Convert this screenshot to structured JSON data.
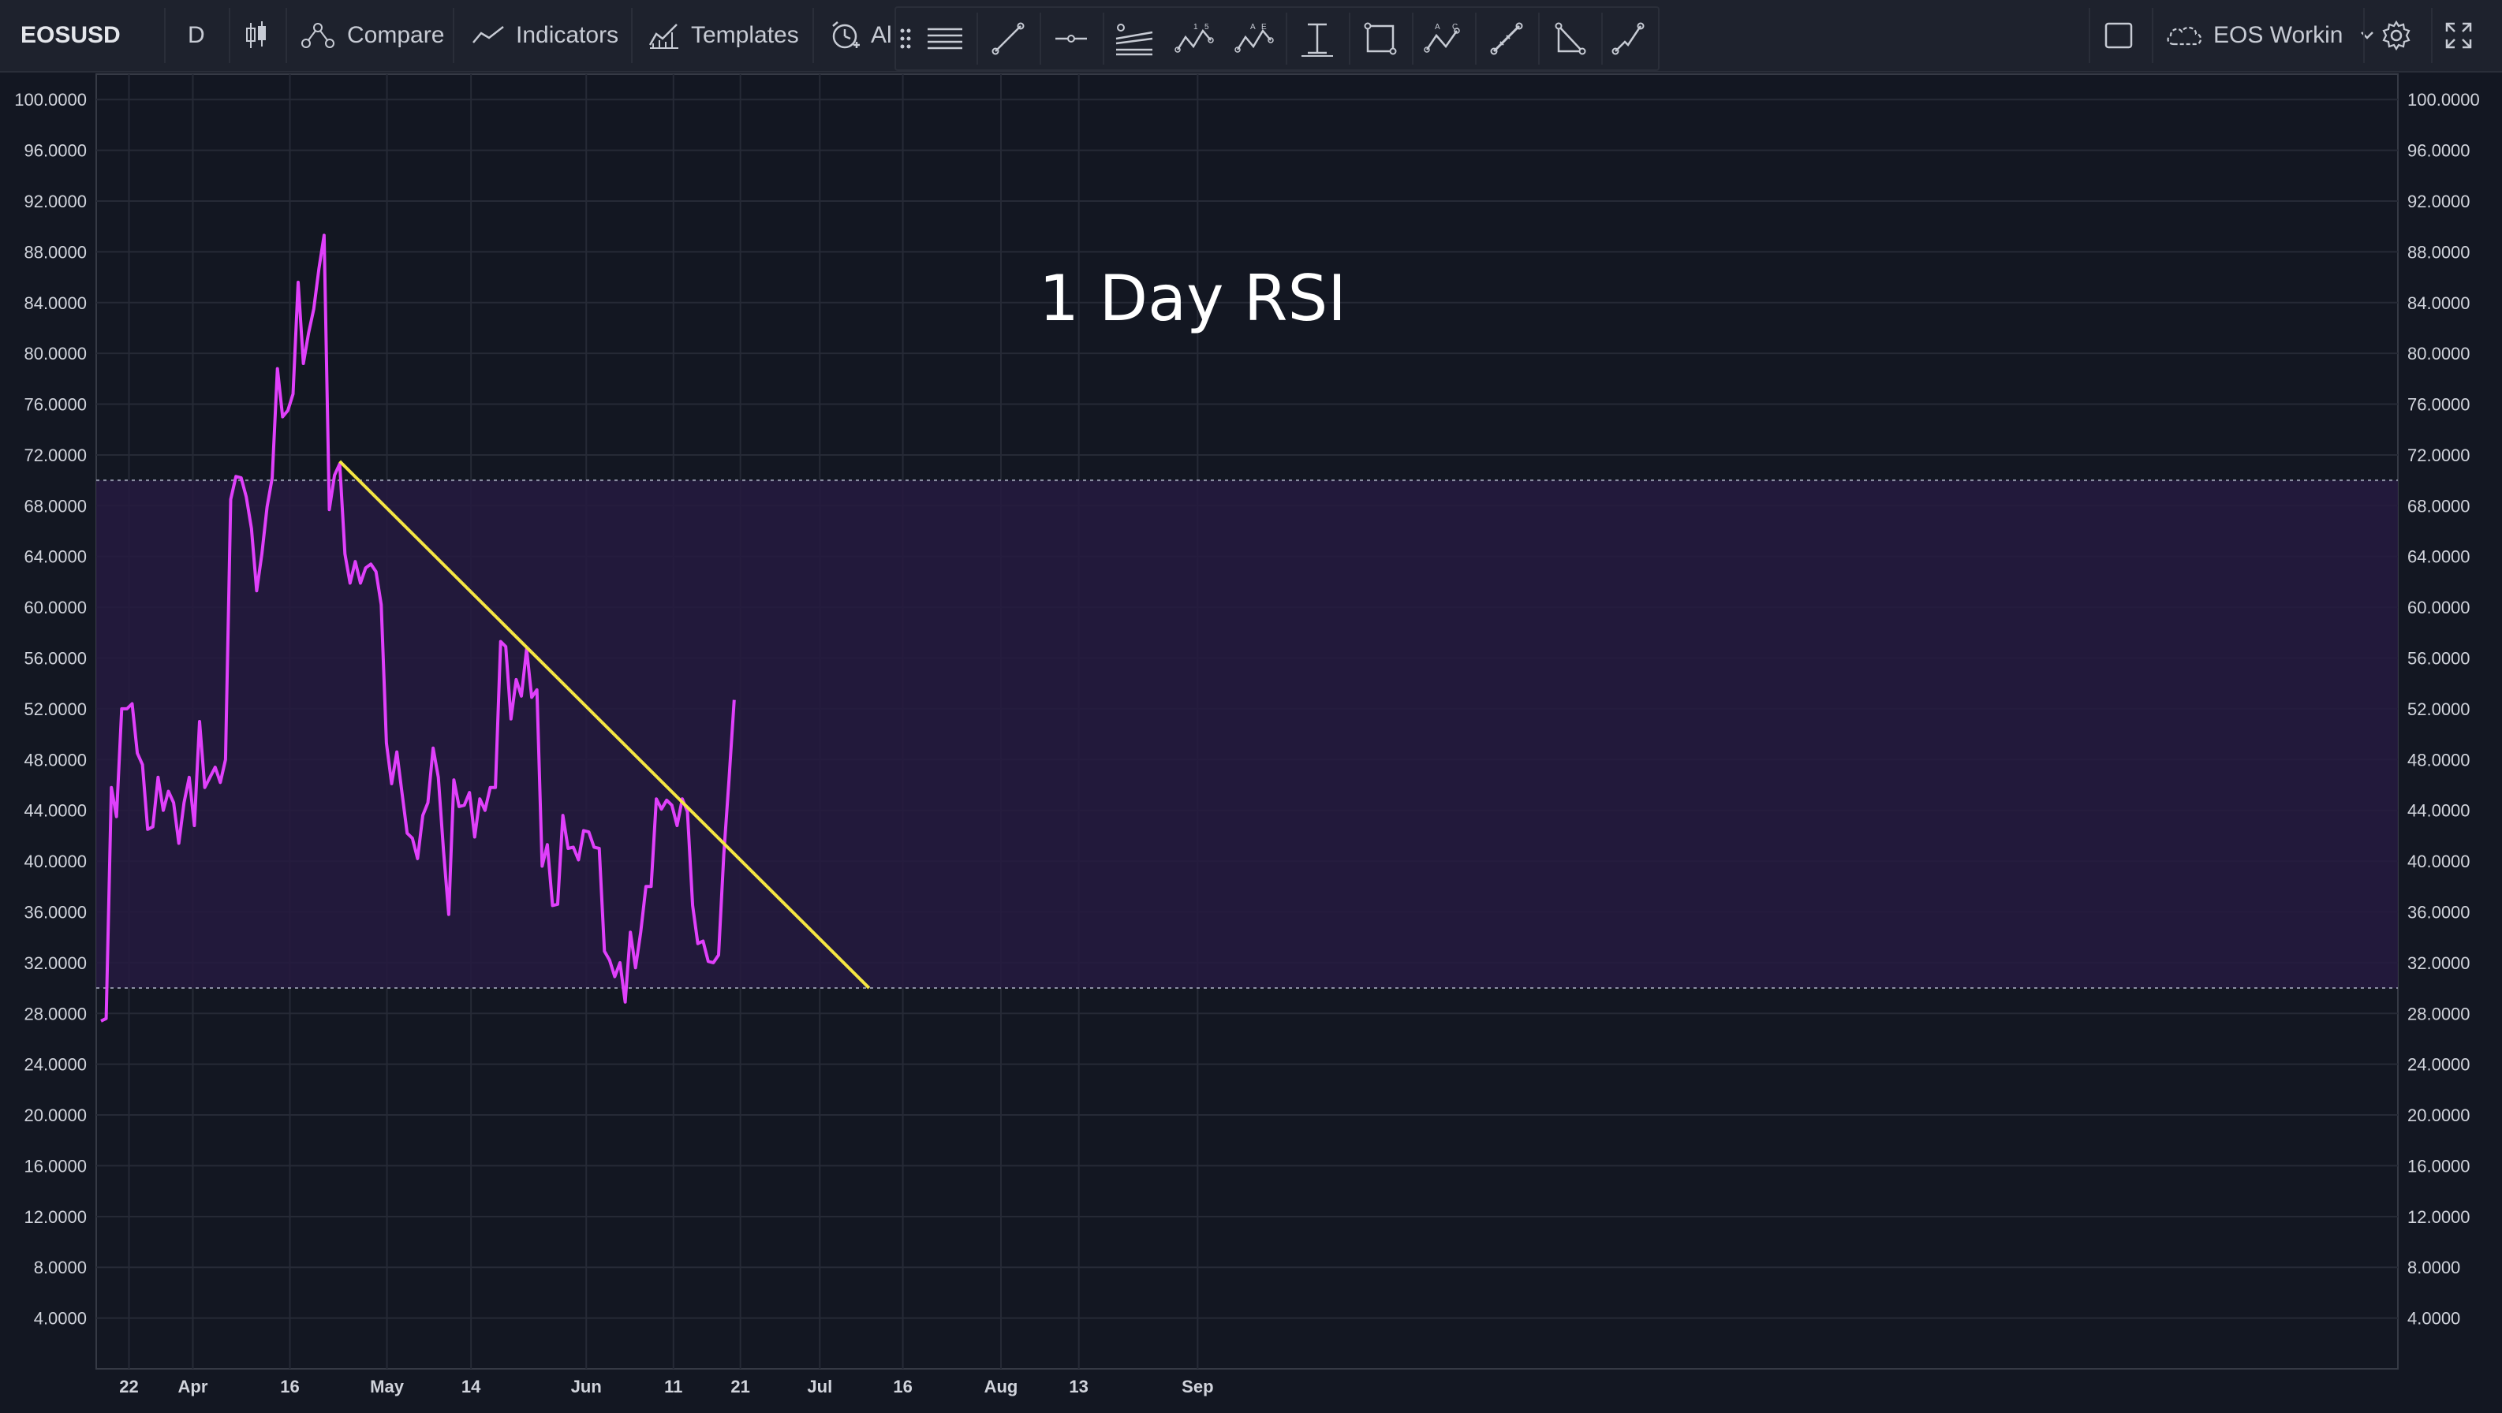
{
  "header": {
    "symbol": "EOSUSD",
    "interval": "D",
    "compare_label": "Compare",
    "indicators_label": "Indicators",
    "templates_label": "Templates",
    "alert_label": "Al",
    "layout_name": "EOS Workin"
  },
  "drawing_tools": [
    "horizontal-lines-icon",
    "trend-line-icon",
    "horizontal-ray-icon",
    "parallel-channel-icon",
    "xabcd-pattern-icon",
    "elliott-wave-icon",
    "price-range-icon",
    "rectangle-icon",
    "abcd-pattern-icon",
    "ruler-icon",
    "triangle-icon",
    "path-icon"
  ],
  "colors": {
    "background": "#131722",
    "rsi_line": "#e040fb",
    "trend_line": "#f5e642",
    "band_fill": "#261a40",
    "grid": "#262a36"
  },
  "chart_data": {
    "type": "line",
    "title": "1 Day RSI",
    "ylim": [
      0,
      102
    ],
    "y_ticks": [
      "100.0000",
      "96.0000",
      "92.0000",
      "88.0000",
      "84.0000",
      "80.0000",
      "76.0000",
      "72.0000",
      "68.0000",
      "64.0000",
      "60.0000",
      "56.0000",
      "52.0000",
      "48.0000",
      "44.0000",
      "40.0000",
      "36.0000",
      "32.0000",
      "28.0000",
      "24.0000",
      "20.0000",
      "16.0000",
      "12.0000",
      "8.0000",
      "4.0000"
    ],
    "x_ticks": [
      "22",
      "Apr",
      "16",
      "May",
      "14",
      "Jun",
      "11",
      "21",
      "Jul",
      "16",
      "Aug",
      "13",
      "Sep"
    ],
    "bands": {
      "upper": 70,
      "lower": 30
    },
    "series": [
      {
        "values": [
          27.4,
          27.6,
          45.8,
          43.5,
          52,
          52,
          52.4,
          48.5,
          47.6,
          42.5,
          42.7,
          46.6,
          44,
          45.5,
          44.6,
          41.4,
          44.6,
          46.6,
          42.8,
          51,
          45.8,
          46.6,
          47.4,
          46.2,
          48,
          68.5,
          70.3,
          70.2,
          68.7,
          66.2,
          61.3,
          64.2,
          67.9,
          70.2,
          78.8,
          75,
          75.5,
          76.8,
          85.6,
          79.2,
          81.6,
          83.5,
          86.7,
          89.3,
          67.7,
          70.4,
          71.3,
          64.2,
          61.9,
          63.6,
          61.9,
          63.1,
          63.4,
          62.8,
          60.2,
          49.3,
          46.1,
          48.6,
          45.4,
          42.2,
          41.8,
          40.2,
          43.6,
          44.6,
          48.9,
          46.6,
          40.8,
          35.8,
          46.4,
          44.3,
          44.4,
          45.4,
          41.9,
          44.9,
          44,
          45.8,
          45.8,
          57.3,
          56.9,
          51.2,
          54.3,
          53,
          56.7,
          52.9,
          53.5,
          39.6,
          41.3,
          36.5,
          36.6,
          43.6,
          41,
          41.1,
          40.1,
          42.4,
          42.3,
          41.1,
          41,
          32.9,
          32.2,
          30.9,
          32,
          28.9,
          34.4,
          31.6,
          34.4,
          38,
          38,
          44.9,
          44.1,
          44.8,
          44.4,
          42.8,
          44.9,
          43.9,
          36.5,
          33.5,
          33.7,
          32.1,
          32,
          32.6,
          40.5,
          46.4,
          52.7
        ]
      }
    ],
    "trend_line": {
      "from": {
        "index": 46,
        "value": 71.5
      },
      "to": {
        "index": 148,
        "value": 30
      }
    }
  }
}
